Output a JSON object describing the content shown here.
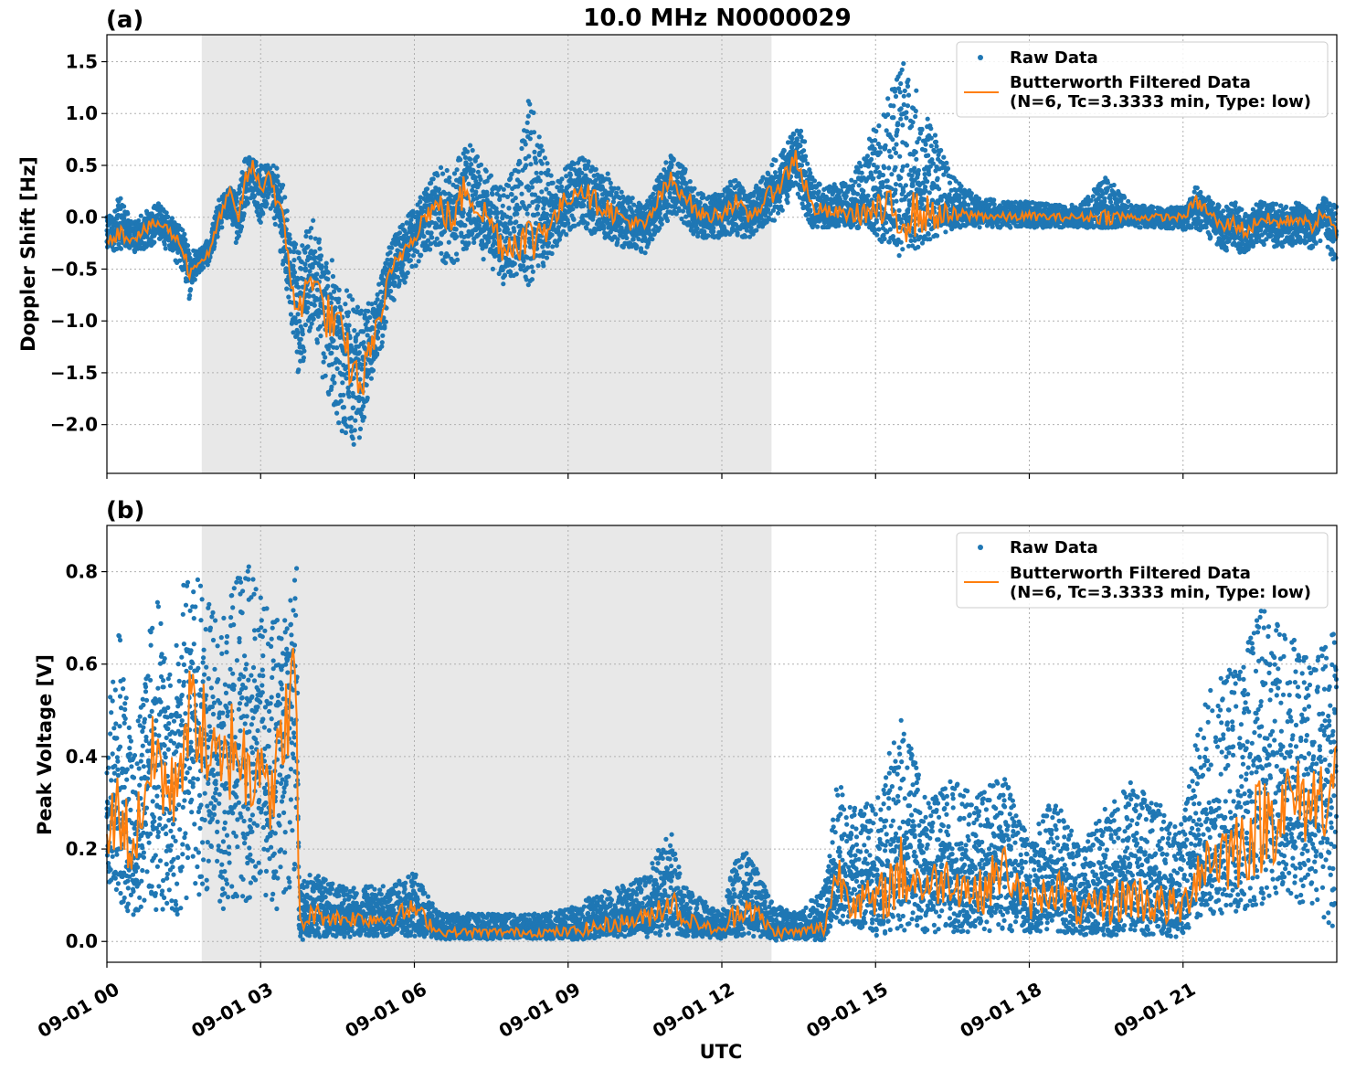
{
  "figure": {
    "title": "10.0 MHz N0000029",
    "xlabel": "UTC",
    "colors": {
      "raw": "#1f77b4",
      "filtered": "#ff7f0e",
      "shade": "#e8e8e8",
      "grid": "#b0b0b0"
    },
    "x_tick_labels": [
      "09-01 00",
      "09-01 03",
      "09-01 06",
      "09-01 09",
      "09-01 12",
      "09-01 15",
      "09-01 18",
      "09-01 21"
    ],
    "x_tick_hours": [
      0,
      3,
      6,
      9,
      12,
      15,
      18,
      21
    ],
    "x_range_hours": [
      0,
      24
    ],
    "shaded_interval_hours": [
      1.85,
      12.97
    ],
    "legend": {
      "raw_label": "Raw Data",
      "filtered_label_line1": "Butterworth Filtered Data",
      "filtered_label_line2": "(N=6, Tc=3.3333 min, Type: low)",
      "position": "top-right"
    }
  },
  "chart_data": [
    {
      "type": "line",
      "panel_label": "(a)",
      "ylabel": "Doppler Shift [Hz]",
      "ylim": [
        -2.47,
        1.76
      ],
      "y_ticks": [
        1.5,
        1.0,
        0.5,
        0.0,
        -0.5,
        -1.0,
        -1.5,
        -2.0
      ],
      "y_tick_labels": [
        "1.5",
        "1.0",
        "0.5",
        "0.0",
        "−0.5",
        "−1.0",
        "−1.5",
        "−2.0"
      ],
      "grid": true,
      "series": [
        {
          "name": "Butterworth Filtered Data",
          "x_hours": [
            0,
            0.25,
            0.5,
            0.75,
            1.0,
            1.25,
            1.5,
            1.6,
            1.75,
            2.0,
            2.2,
            2.4,
            2.55,
            2.7,
            2.85,
            3.0,
            3.15,
            3.3,
            3.45,
            3.6,
            3.75,
            3.9,
            4.05,
            4.2,
            4.4,
            4.6,
            4.8,
            5.0,
            5.1,
            5.25,
            5.4,
            5.5,
            5.6,
            5.75,
            6.0,
            6.25,
            6.5,
            6.75,
            7.0,
            7.25,
            7.5,
            7.75,
            8.0,
            8.25,
            8.5,
            8.75,
            9.0,
            9.25,
            9.5,
            9.75,
            10.0,
            10.25,
            10.5,
            10.75,
            11.0,
            11.25,
            11.5,
            11.75,
            12.0,
            12.25,
            12.5,
            12.75,
            13.0,
            13.25,
            13.45,
            13.6,
            13.75,
            14.0,
            14.5,
            15.0,
            15.5,
            16.0,
            16.5,
            17.0,
            17.5,
            18.0,
            18.5,
            19.0,
            19.5,
            20.0,
            20.5,
            21.0,
            21.25,
            21.5,
            21.75,
            22.0,
            22.25,
            22.5,
            22.75,
            23.0,
            23.25,
            23.5,
            23.75,
            24.0
          ],
          "y": [
            -0.2,
            -0.15,
            -0.2,
            -0.12,
            -0.05,
            -0.15,
            -0.3,
            -0.55,
            -0.45,
            -0.35,
            0.0,
            0.25,
            -0.05,
            0.35,
            0.5,
            0.25,
            0.45,
            0.2,
            -0.1,
            -0.6,
            -0.95,
            -0.7,
            -0.5,
            -0.9,
            -1.0,
            -1.2,
            -1.5,
            -1.6,
            -1.3,
            -1.1,
            -0.85,
            -0.6,
            -0.5,
            -0.35,
            -0.15,
            0.05,
            0.1,
            -0.05,
            0.3,
            0.1,
            -0.05,
            -0.3,
            -0.2,
            -0.25,
            -0.1,
            0.0,
            0.2,
            0.3,
            0.15,
            0.1,
            0.0,
            -0.05,
            -0.1,
            0.15,
            0.35,
            0.25,
            0.05,
            0.0,
            0.05,
            0.15,
            0.0,
            0.1,
            0.25,
            0.4,
            0.6,
            0.35,
            0.1,
            0.05,
            0.03,
            0.05,
            0.02,
            0.03,
            0.01,
            0.02,
            0.0,
            0.01,
            0.0,
            0.0,
            0.01,
            0.0,
            0.0,
            0.0,
            0.15,
            0.05,
            -0.1,
            -0.05,
            -0.15,
            0.0,
            -0.05,
            -0.05,
            0.0,
            -0.1,
            0.05,
            -0.2
          ]
        },
        {
          "name": "Raw Data",
          "x_hours": [
            0,
            0.25,
            0.5,
            0.75,
            1.0,
            1.25,
            1.5,
            1.6,
            1.75,
            2.0,
            2.2,
            2.4,
            2.55,
            2.7,
            2.85,
            3.0,
            3.15,
            3.3,
            3.45,
            3.6,
            3.75,
            3.9,
            4.05,
            4.2,
            4.4,
            4.6,
            4.8,
            5.0,
            5.1,
            5.25,
            5.4,
            5.5,
            5.6,
            5.75,
            6.0,
            6.25,
            6.5,
            6.75,
            7.0,
            7.25,
            7.5,
            7.75,
            8.0,
            8.25,
            8.5,
            8.75,
            9.0,
            9.25,
            9.5,
            9.75,
            10.0,
            10.25,
            10.5,
            10.75,
            11.0,
            11.25,
            11.5,
            11.75,
            12.0,
            12.25,
            12.5,
            12.75,
            13.0,
            13.25,
            13.45,
            13.6,
            13.75,
            14.0,
            14.5,
            15.0,
            15.5,
            16.0,
            16.5,
            17.0,
            17.5,
            18.0,
            18.5,
            19.0,
            19.5,
            20.0,
            20.5,
            21.0,
            21.25,
            21.5,
            21.75,
            22.0,
            22.25,
            22.5,
            22.75,
            23.0,
            23.25,
            23.5,
            23.75,
            24.0
          ],
          "y_min": [
            -0.35,
            -0.3,
            -0.35,
            -0.3,
            -0.25,
            -0.35,
            -0.55,
            -0.8,
            -0.55,
            -0.45,
            -0.15,
            0.05,
            -0.35,
            0.1,
            0.2,
            -0.1,
            0.15,
            -0.1,
            -0.5,
            -1.0,
            -1.6,
            -1.2,
            -1.0,
            -1.6,
            -1.8,
            -2.1,
            -2.2,
            -2.1,
            -1.7,
            -1.4,
            -1.2,
            -0.9,
            -0.8,
            -0.7,
            -0.5,
            -0.3,
            -0.4,
            -0.5,
            -0.3,
            -0.35,
            -0.5,
            -0.7,
            -0.55,
            -0.6,
            -0.5,
            -0.3,
            -0.15,
            -0.05,
            -0.2,
            -0.2,
            -0.3,
            -0.3,
            -0.35,
            -0.15,
            0.0,
            -0.05,
            -0.2,
            -0.2,
            -0.2,
            -0.15,
            -0.25,
            -0.1,
            -0.05,
            0.05,
            0.2,
            0.05,
            -0.1,
            -0.1,
            -0.1,
            -0.1,
            -0.1,
            -0.1,
            -0.1,
            -0.1,
            -0.1,
            -0.1,
            -0.1,
            -0.1,
            -0.1,
            -0.1,
            -0.1,
            -0.12,
            -0.1,
            -0.2,
            -0.3,
            -0.35,
            -0.35,
            -0.25,
            -0.3,
            -0.3,
            -0.25,
            -0.3,
            -0.2,
            -0.5
          ],
          "y_max": [
            0.0,
            0.2,
            -0.05,
            0.05,
            0.15,
            0.0,
            -0.1,
            -0.3,
            -0.3,
            -0.2,
            0.2,
            0.3,
            0.25,
            0.6,
            0.6,
            0.5,
            0.5,
            0.5,
            0.3,
            -0.2,
            -0.3,
            -0.1,
            0.0,
            -0.3,
            -0.4,
            -0.6,
            -0.8,
            -0.9,
            -0.8,
            -0.7,
            -0.5,
            -0.3,
            -0.2,
            -0.05,
            0.1,
            0.3,
            0.5,
            0.45,
            0.75,
            0.6,
            0.4,
            0.3,
            0.5,
            1.2,
            0.7,
            0.35,
            0.5,
            0.6,
            0.5,
            0.45,
            0.3,
            0.2,
            0.1,
            0.4,
            0.6,
            0.5,
            0.25,
            0.2,
            0.25,
            0.4,
            0.2,
            0.35,
            0.55,
            0.7,
            0.9,
            0.8,
            0.4,
            0.3,
            0.35,
            0.9,
            1.55,
            1.0,
            0.4,
            0.2,
            0.15,
            0.15,
            0.12,
            0.12,
            0.4,
            0.12,
            0.1,
            0.1,
            0.3,
            0.2,
            0.1,
            0.15,
            0.05,
            0.15,
            0.15,
            0.1,
            0.15,
            0.05,
            0.2,
            0.1
          ]
        }
      ]
    },
    {
      "type": "line",
      "panel_label": "(b)",
      "ylabel": "Peak Voltage [V]",
      "ylim": [
        -0.045,
        0.9
      ],
      "y_ticks": [
        0.8,
        0.6,
        0.4,
        0.2,
        0.0
      ],
      "y_tick_labels": [
        "0.8",
        "0.6",
        "0.4",
        "0.2",
        "0.0"
      ],
      "grid": true,
      "series": [
        {
          "name": "Butterworth Filtered Data",
          "x_hours": [
            0,
            0.25,
            0.5,
            0.75,
            1.0,
            1.25,
            1.5,
            1.75,
            2.0,
            2.25,
            2.5,
            2.75,
            3.0,
            3.25,
            3.5,
            3.7,
            3.75,
            4.0,
            4.5,
            5.0,
            5.5,
            6.0,
            6.5,
            7.0,
            7.5,
            8.0,
            8.5,
            9.0,
            9.5,
            10.0,
            10.5,
            11.0,
            11.25,
            11.5,
            12.0,
            12.25,
            12.5,
            13.0,
            13.5,
            14.0,
            14.25,
            14.5,
            15.0,
            15.5,
            16.0,
            16.5,
            17.0,
            17.5,
            18.0,
            18.5,
            19.0,
            19.5,
            20.0,
            20.5,
            21.0,
            21.25,
            21.5,
            22.0,
            22.5,
            23.0,
            23.5,
            24.0
          ],
          "y": [
            0.22,
            0.3,
            0.18,
            0.35,
            0.4,
            0.3,
            0.45,
            0.5,
            0.4,
            0.35,
            0.45,
            0.35,
            0.45,
            0.3,
            0.5,
            0.55,
            0.03,
            0.06,
            0.05,
            0.05,
            0.05,
            0.07,
            0.02,
            0.02,
            0.02,
            0.02,
            0.02,
            0.02,
            0.03,
            0.04,
            0.05,
            0.09,
            0.05,
            0.04,
            0.02,
            0.06,
            0.08,
            0.02,
            0.02,
            0.03,
            0.15,
            0.1,
            0.08,
            0.15,
            0.12,
            0.14,
            0.1,
            0.16,
            0.08,
            0.12,
            0.06,
            0.08,
            0.1,
            0.08,
            0.07,
            0.15,
            0.18,
            0.2,
            0.25,
            0.3,
            0.3,
            0.35
          ]
        },
        {
          "name": "Raw Data",
          "x_hours": [
            0,
            0.25,
            0.5,
            0.75,
            1.0,
            1.25,
            1.5,
            1.75,
            2.0,
            2.25,
            2.5,
            2.75,
            3.0,
            3.25,
            3.5,
            3.7,
            3.75,
            4.0,
            4.5,
            5.0,
            5.5,
            6.0,
            6.5,
            7.0,
            7.5,
            8.0,
            8.5,
            9.0,
            9.5,
            10.0,
            10.5,
            11.0,
            11.25,
            11.5,
            12.0,
            12.25,
            12.5,
            13.0,
            13.5,
            14.0,
            14.25,
            14.5,
            15.0,
            15.5,
            16.0,
            16.5,
            17.0,
            17.5,
            18.0,
            18.5,
            19.0,
            19.5,
            20.0,
            20.5,
            21.0,
            21.25,
            21.5,
            22.0,
            22.5,
            23.0,
            23.5,
            24.0
          ],
          "y_min": [
            0.1,
            0.08,
            0.05,
            0.08,
            0.06,
            0.05,
            0.05,
            0.1,
            0.1,
            0.06,
            0.1,
            0.08,
            0.1,
            0.05,
            0.1,
            0.15,
            0.0,
            0.01,
            0.01,
            0.01,
            0.01,
            0.01,
            0.005,
            0.005,
            0.005,
            0.005,
            0.005,
            0.005,
            0.005,
            0.01,
            0.01,
            0.01,
            0.01,
            0.01,
            0.005,
            0.01,
            0.01,
            0.005,
            0.005,
            0.005,
            0.04,
            0.03,
            0.02,
            0.02,
            0.02,
            0.02,
            0.02,
            0.02,
            0.02,
            0.02,
            0.01,
            0.02,
            0.02,
            0.02,
            0.01,
            0.05,
            0.06,
            0.06,
            0.08,
            0.08,
            0.08,
            0.02
          ],
          "y_max": [
            0.5,
            0.7,
            0.4,
            0.65,
            0.75,
            0.6,
            0.78,
            0.8,
            0.75,
            0.7,
            0.78,
            0.82,
            0.75,
            0.7,
            0.72,
            0.85,
            0.12,
            0.15,
            0.12,
            0.12,
            0.12,
            0.15,
            0.06,
            0.06,
            0.06,
            0.06,
            0.06,
            0.07,
            0.1,
            0.12,
            0.14,
            0.25,
            0.12,
            0.1,
            0.06,
            0.18,
            0.2,
            0.08,
            0.06,
            0.12,
            0.35,
            0.3,
            0.3,
            0.5,
            0.3,
            0.35,
            0.32,
            0.36,
            0.22,
            0.32,
            0.2,
            0.3,
            0.35,
            0.3,
            0.25,
            0.45,
            0.55,
            0.6,
            0.72,
            0.7,
            0.6,
            0.7
          ]
        }
      ]
    }
  ]
}
